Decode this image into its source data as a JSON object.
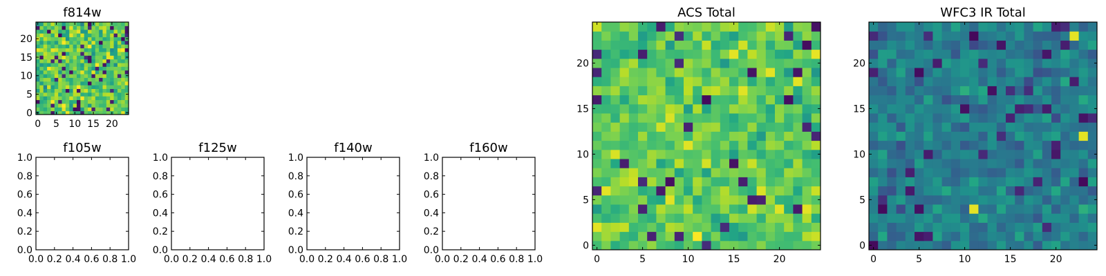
{
  "colormap": "viridis",
  "chart_data": [
    {
      "type": "heatmap",
      "title": "f814w",
      "grid_size": 25,
      "xlim": [
        0,
        24
      ],
      "ylim": [
        0,
        24
      ],
      "x_ticks": [
        "0",
        "5",
        "10",
        "15",
        "20"
      ],
      "y_ticks": [
        "0",
        "5",
        "10",
        "15",
        "20"
      ],
      "value_range": [
        0,
        1
      ],
      "seed": 11,
      "value_model": {
        "mean": 0.74,
        "spread": 0.22,
        "low_outliers": 0.06
      }
    },
    {
      "type": "empty",
      "title": "f105w",
      "xlim": [
        0,
        1
      ],
      "ylim": [
        0,
        1
      ],
      "x_ticks": [
        "0.0",
        "0.2",
        "0.4",
        "0.6",
        "0.8",
        "1.0"
      ],
      "y_ticks": [
        "0.0",
        "0.2",
        "0.4",
        "0.6",
        "0.8",
        "1.0"
      ]
    },
    {
      "type": "empty",
      "title": "f125w",
      "xlim": [
        0,
        1
      ],
      "ylim": [
        0,
        1
      ],
      "x_ticks": [
        "0.0",
        "0.2",
        "0.4",
        "0.6",
        "0.8",
        "1.0"
      ],
      "y_ticks": [
        "0.0",
        "0.2",
        "0.4",
        "0.6",
        "0.8",
        "1.0"
      ]
    },
    {
      "type": "empty",
      "title": "f140w",
      "xlim": [
        0,
        1
      ],
      "ylim": [
        0,
        1
      ],
      "x_ticks": [
        "0.0",
        "0.2",
        "0.4",
        "0.6",
        "0.8",
        "1.0"
      ],
      "y_ticks": [
        "0.0",
        "0.2",
        "0.4",
        "0.6",
        "0.8",
        "1.0"
      ]
    },
    {
      "type": "empty",
      "title": "f160w",
      "xlim": [
        0,
        1
      ],
      "ylim": [
        0,
        1
      ],
      "x_ticks": [
        "0.0",
        "0.2",
        "0.4",
        "0.6",
        "0.8",
        "1.0"
      ],
      "y_ticks": [
        "0.0",
        "0.2",
        "0.4",
        "0.6",
        "0.8",
        "1.0"
      ]
    },
    {
      "type": "heatmap",
      "title": "ACS Total",
      "grid_size": 25,
      "xlim": [
        0,
        24
      ],
      "ylim": [
        0,
        24
      ],
      "x_ticks": [
        "0",
        "5",
        "10",
        "15",
        "20"
      ],
      "y_ticks": [
        "0",
        "5",
        "10",
        "15",
        "20"
      ],
      "value_range": [
        0,
        1
      ],
      "seed": 23,
      "value_model": {
        "mean": 0.75,
        "spread": 0.18,
        "low_outliers": 0.04
      }
    },
    {
      "type": "heatmap",
      "title": "WFC3 IR Total",
      "grid_size": 25,
      "xlim": [
        0,
        24
      ],
      "ylim": [
        0,
        24
      ],
      "x_ticks": [
        "0",
        "5",
        "10",
        "15",
        "20"
      ],
      "y_ticks": [
        "0",
        "5",
        "10",
        "15",
        "20"
      ],
      "value_range": [
        0,
        1
      ],
      "seed": 37,
      "value_model": {
        "mean": 0.43,
        "spread": 0.16,
        "low_outliers": 0.05
      }
    }
  ]
}
